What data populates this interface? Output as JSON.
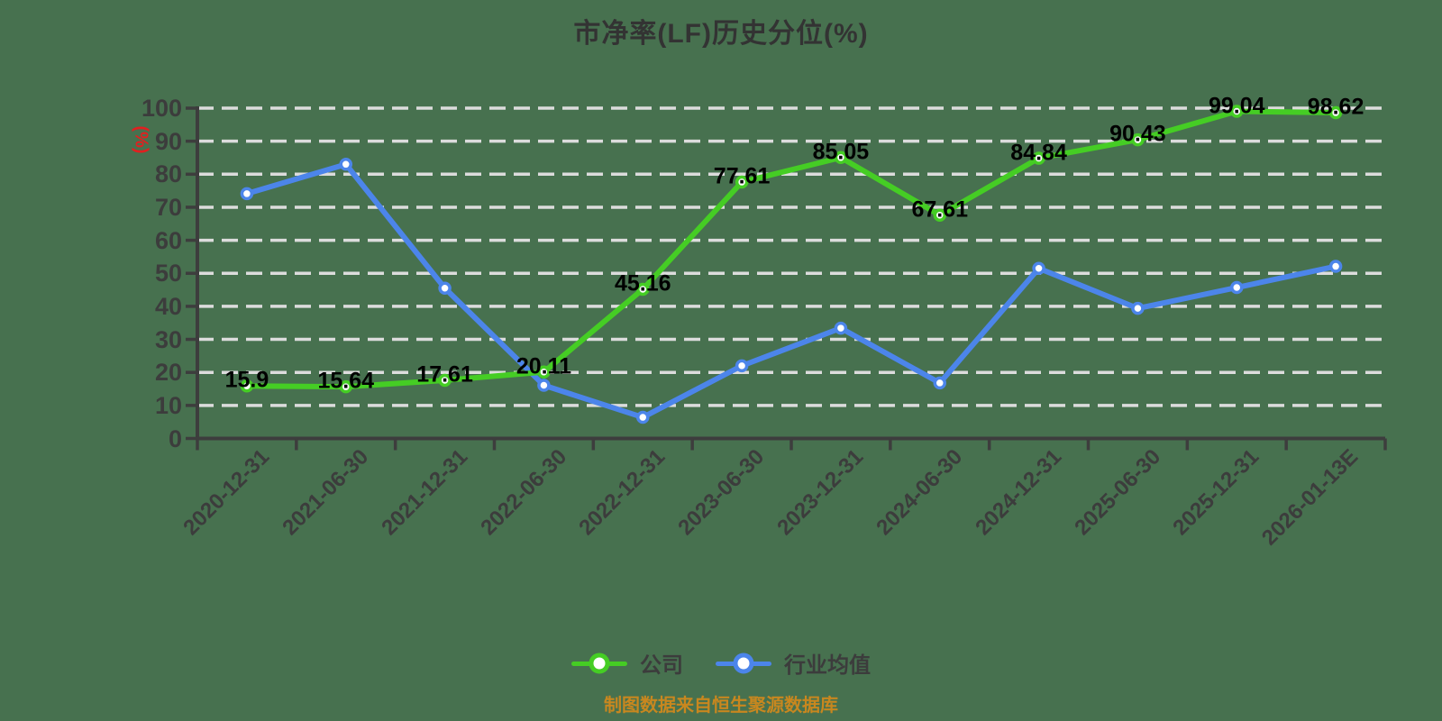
{
  "title": "市净率(LF)历史分位(%)",
  "y_axis_unit": "(%)",
  "source_note": "制图数据来自恒生聚源数据库",
  "legend": {
    "company_label": "公司",
    "industry_label": "行业均值"
  },
  "colors": {
    "background": "#47714f",
    "company_line": "#45cd24",
    "industry_line": "#4c85ea",
    "grid": "#dcdcdc",
    "axis": "#3d3d3d",
    "tick_text": "#3c3c3c",
    "data_label": "#000000",
    "title_text": "#333333",
    "unit_text": "#e02020",
    "source_text": "#c8871f"
  },
  "chart_data": {
    "type": "line",
    "title": "市净率(LF)历史分位(%)",
    "ylabel": "(%)",
    "ylim": [
      0,
      100
    ],
    "y_ticks": [
      0,
      10,
      20,
      30,
      40,
      50,
      60,
      70,
      80,
      90,
      100
    ],
    "grid": "horizontal-dashed",
    "legend_position": "bottom",
    "categories": [
      "2020-12-31",
      "2021-06-30",
      "2021-12-31",
      "2022-06-30",
      "2022-12-31",
      "2023-06-30",
      "2023-12-31",
      "2024-06-30",
      "2024-12-31",
      "2025-06-30",
      "2025-12-31",
      "2026-01-13E"
    ],
    "series": [
      {
        "name": "公司",
        "color": "#45cd24",
        "show_labels": true,
        "values": [
          15.9,
          15.64,
          17.61,
          20.11,
          45.16,
          77.61,
          85.05,
          67.61,
          84.84,
          90.43,
          99.04,
          98.62
        ]
      },
      {
        "name": "行业均值",
        "color": "#4c85ea",
        "show_labels": false,
        "values": [
          74.1,
          83.0,
          45.5,
          16.1,
          6.4,
          22.0,
          33.4,
          16.8,
          51.5,
          39.4,
          45.7,
          52.1
        ]
      }
    ]
  }
}
